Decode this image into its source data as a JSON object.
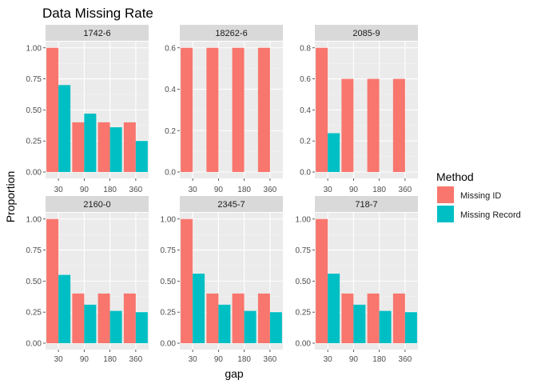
{
  "chart_data": {
    "type": "bar",
    "layout": "faceted bar chart, 2 rows x 3 columns, independent y scales",
    "title": "Data Missing Rate",
    "xlabel": "gap",
    "ylabel": "Proportion",
    "categories": [
      "30",
      "90",
      "180",
      "360"
    ],
    "grid": true,
    "legend": {
      "title": "Method",
      "placement": "right",
      "entries": [
        {
          "name": "Missing ID",
          "color": "#F8766D"
        },
        {
          "name": "Missing Record",
          "color": "#00BFC4"
        }
      ]
    },
    "colors": {
      "panel_background": "#EBEBEB",
      "strip_background": "#D9D9D9",
      "grid_major": "#FFFFFF",
      "text": "#1A1A1A",
      "tick_text": "#4D4D4D"
    },
    "panels": [
      {
        "label": "1742-6",
        "ylim": [
          0,
          1.05
        ],
        "yticks": [
          0,
          0.25,
          0.5,
          0.75,
          1.0
        ],
        "ytick_labels": [
          "0.00",
          "0.25",
          "0.50",
          "0.75",
          "1.00"
        ],
        "series": [
          {
            "name": "Missing ID",
            "values": [
              1.0,
              0.4,
              0.4,
              0.4
            ]
          },
          {
            "name": "Missing Record",
            "values": [
              0.7,
              0.47,
              0.36,
              0.25
            ]
          }
        ]
      },
      {
        "label": "18262-6",
        "ylim": [
          0,
          0.63
        ],
        "yticks": [
          0,
          0.2,
          0.4,
          0.6
        ],
        "ytick_labels": [
          "0.0",
          "0.2",
          "0.4",
          "0.6"
        ],
        "series": [
          {
            "name": "Missing ID",
            "values": [
              0.6,
              0.6,
              0.6,
              0.6
            ]
          },
          {
            "name": "Missing Record",
            "values": [
              0,
              0,
              0,
              0
            ]
          }
        ]
      },
      {
        "label": "2085-9",
        "ylim": [
          0,
          0.84
        ],
        "yticks": [
          0,
          0.2,
          0.4,
          0.6,
          0.8
        ],
        "ytick_labels": [
          "0.0",
          "0.2",
          "0.4",
          "0.6",
          "0.8"
        ],
        "series": [
          {
            "name": "Missing ID",
            "values": [
              0.8,
              0.6,
              0.6,
              0.6
            ]
          },
          {
            "name": "Missing Record",
            "values": [
              0.25,
              0,
              0,
              0
            ]
          }
        ]
      },
      {
        "label": "2160-0",
        "ylim": [
          0,
          1.05
        ],
        "yticks": [
          0,
          0.25,
          0.5,
          0.75,
          1.0
        ],
        "ytick_labels": [
          "0.00",
          "0.25",
          "0.50",
          "0.75",
          "1.00"
        ],
        "series": [
          {
            "name": "Missing ID",
            "values": [
              1.0,
              0.4,
              0.4,
              0.4
            ]
          },
          {
            "name": "Missing Record",
            "values": [
              0.55,
              0.31,
              0.26,
              0.25
            ]
          }
        ]
      },
      {
        "label": "2345-7",
        "ylim": [
          0,
          1.05
        ],
        "yticks": [
          0,
          0.25,
          0.5,
          0.75,
          1.0
        ],
        "ytick_labels": [
          "0.00",
          "0.25",
          "0.50",
          "0.75",
          "1.00"
        ],
        "series": [
          {
            "name": "Missing ID",
            "values": [
              1.0,
              0.4,
              0.4,
              0.4
            ]
          },
          {
            "name": "Missing Record",
            "values": [
              0.56,
              0.31,
              0.26,
              0.25
            ]
          }
        ]
      },
      {
        "label": "718-7",
        "ylim": [
          0,
          1.05
        ],
        "yticks": [
          0,
          0.25,
          0.5,
          0.75,
          1.0
        ],
        "ytick_labels": [
          "0.00",
          "0.25",
          "0.50",
          "0.75",
          "1.00"
        ],
        "series": [
          {
            "name": "Missing ID",
            "values": [
              1.0,
              0.4,
              0.4,
              0.4
            ]
          },
          {
            "name": "Missing Record",
            "values": [
              0.56,
              0.31,
              0.26,
              0.25
            ]
          }
        ]
      }
    ]
  }
}
